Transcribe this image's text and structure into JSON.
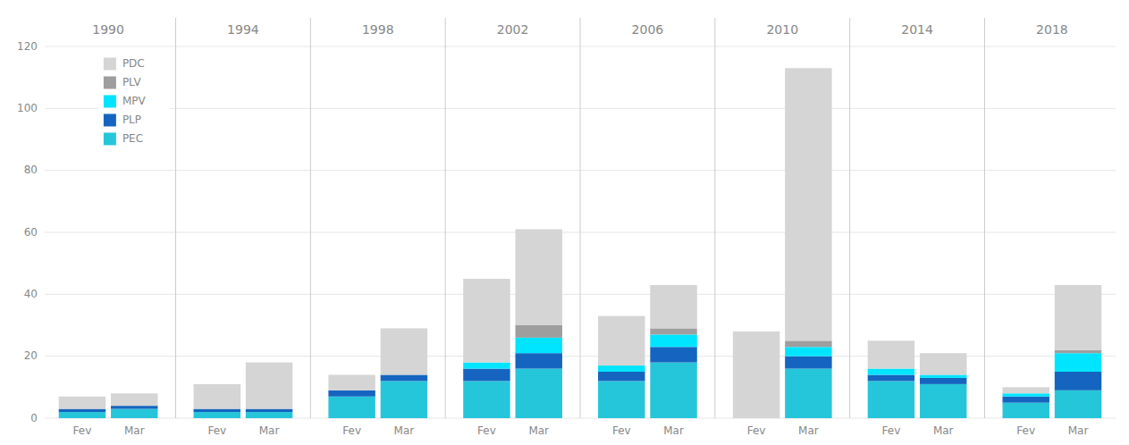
{
  "chart_data": {
    "type": "bar",
    "stacked": true,
    "categories": [
      "Fev",
      "Mar",
      "Fev",
      "Mar",
      "Fev",
      "Mar",
      "Fev",
      "Mar",
      "Fev",
      "Mar",
      "Fev",
      "Mar",
      "Fev",
      "Mar",
      "Fev",
      "Mar"
    ],
    "groups": [
      "1990",
      "1994",
      "1998",
      "2002",
      "2006",
      "2010",
      "2014",
      "2018"
    ],
    "series": [
      {
        "name": "PEC",
        "color": "#26c6da",
        "values": [
          2,
          3,
          2,
          2,
          7,
          12,
          12,
          16,
          12,
          18,
          0,
          16,
          12,
          11,
          5,
          9
        ]
      },
      {
        "name": "PLP",
        "color": "#1565c0",
        "values": [
          1,
          1,
          1,
          1,
          2,
          2,
          4,
          5,
          3,
          5,
          0,
          4,
          2,
          2,
          2,
          6
        ]
      },
      {
        "name": "MPV",
        "color": "#00e5ff",
        "values": [
          0,
          0,
          0,
          0,
          0,
          0,
          2,
          5,
          2,
          4,
          0,
          3,
          2,
          1,
          1,
          6
        ]
      },
      {
        "name": "PLV",
        "color": "#9e9e9e",
        "values": [
          0,
          0,
          0,
          0,
          0,
          0,
          0,
          4,
          0,
          2,
          0,
          2,
          0,
          0,
          0,
          1
        ]
      },
      {
        "name": "PDC",
        "color": "#d5d5d5",
        "values": [
          4,
          4,
          8,
          15,
          5,
          15,
          27,
          31,
          16,
          14,
          28,
          88,
          9,
          7,
          2,
          21
        ]
      }
    ],
    "ylim": [
      0,
      120
    ],
    "yticks": [
      0,
      20,
      40,
      60,
      80,
      100,
      120
    ],
    "grid": true,
    "legend": "upper left"
  }
}
